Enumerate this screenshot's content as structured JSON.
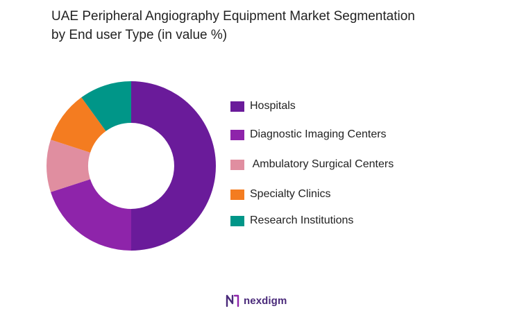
{
  "title_lines": [
    "UAE Peripheral Angiography Equipment  Market Segmentation",
    "by End user Type (in value %)"
  ],
  "chart_data": {
    "type": "pie",
    "variant": "donut",
    "title": "UAE Peripheral Angiography Equipment  Market Segmentation by End user Type (in value %)",
    "categories": [
      "Hospitals",
      "Diagnostic Imaging Centers",
      " Ambulatory Surgical Centers",
      "Specialty Clinics",
      "Research Institutions"
    ],
    "values": [
      50,
      20,
      10,
      10,
      10
    ],
    "colors": [
      "#6a1b9a",
      "#8e24aa",
      "#e08ea0",
      "#f47c20",
      "#009688"
    ],
    "legend_position": "right",
    "start_angle_deg": 0,
    "direction": "clockwise"
  },
  "brand": {
    "name": "nexdigm",
    "logo_icon": "nexdigm-logo-icon",
    "color": "#4a2a7a"
  }
}
